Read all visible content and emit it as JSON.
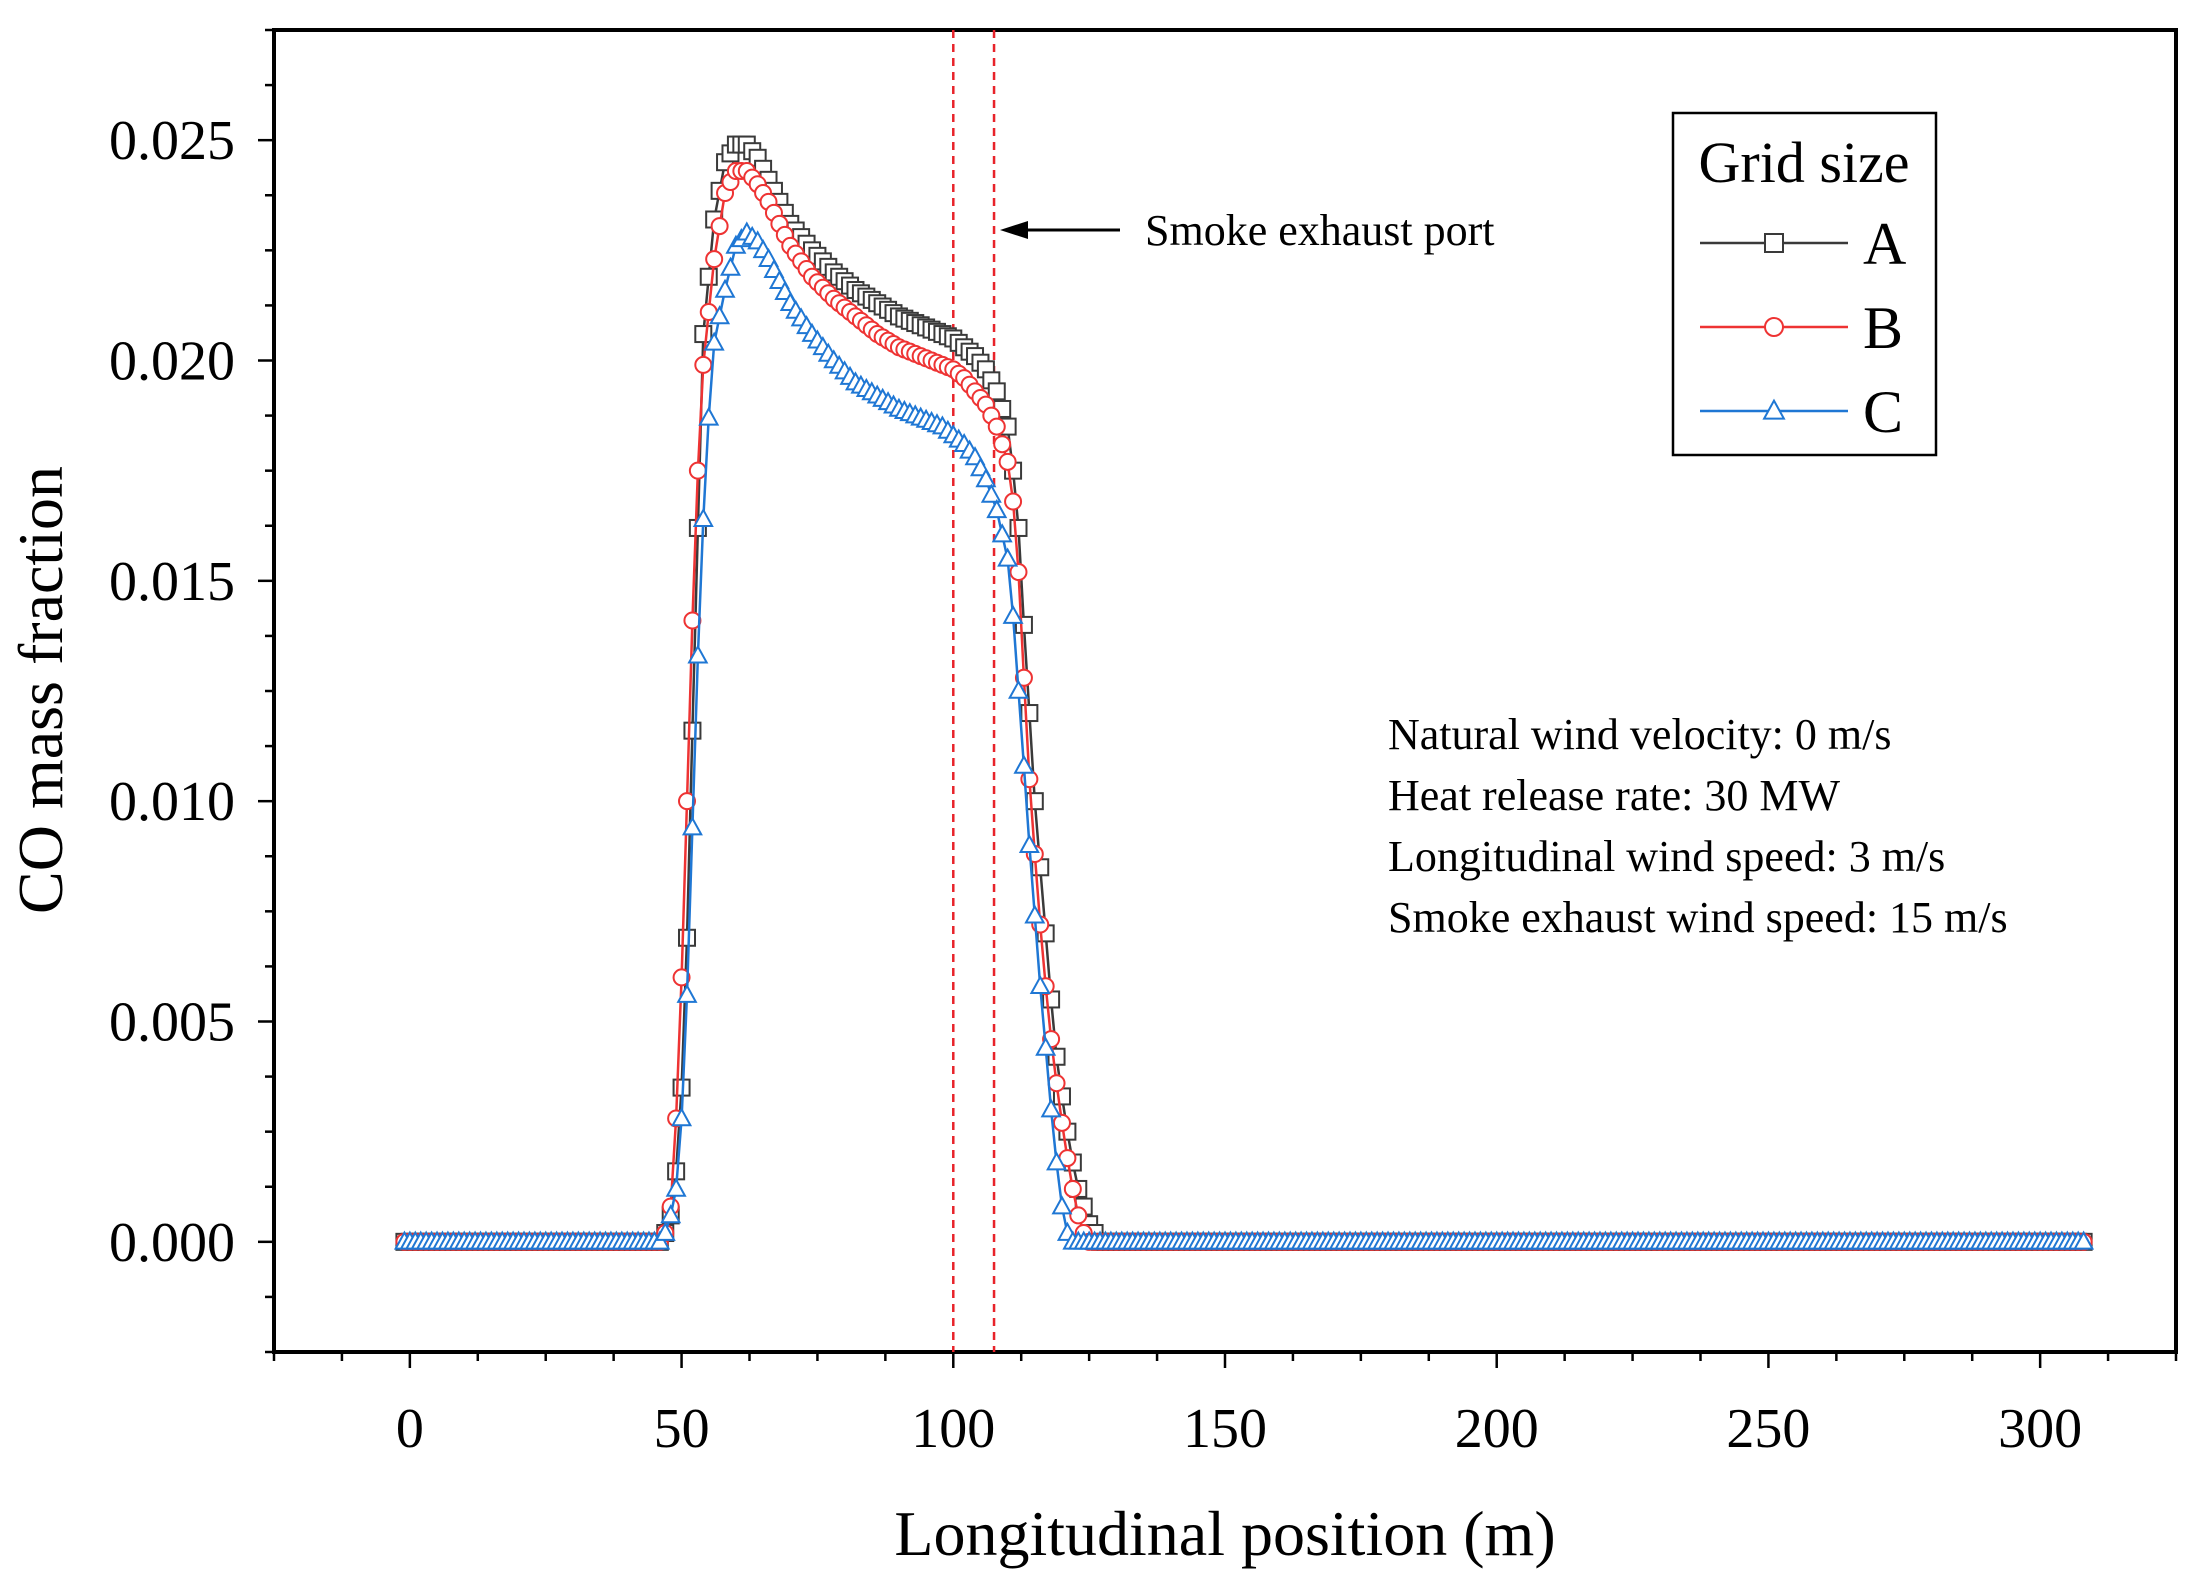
{
  "chart_data": {
    "type": "line",
    "title": "",
    "xlabel": "Longitudinal position (m)",
    "ylabel": "CO mass fraction",
    "xlim": [
      -25,
      325
    ],
    "ylim": [
      -0.0025,
      0.0275
    ],
    "xticks": [
      0,
      50,
      100,
      150,
      200,
      250,
      300
    ],
    "xtick_labels": [
      "0",
      "50",
      "100",
      "150",
      "200",
      "250",
      "300"
    ],
    "yticks": [
      0.0,
      0.005,
      0.01,
      0.015,
      0.02,
      0.025
    ],
    "ytick_labels": [
      "0.000",
      "0.005",
      "0.010",
      "0.015",
      "0.020",
      "0.025"
    ],
    "grid": false,
    "legend": {
      "title": "Grid size",
      "position": "top-right",
      "entries": [
        "A",
        "B",
        "C"
      ]
    },
    "exhaust_port_lines_x": [
      100,
      107.5
    ],
    "exhaust_port_label": "Smoke exhaust port",
    "conditions": [
      "Natural wind velocity: 0 m/s",
      "Heat release rate: 30 MW",
      "Longitudinal wind speed: 3 m/s",
      "Smoke exhaust wind speed: 15 m/s"
    ],
    "series": [
      {
        "name": "A",
        "color": "#3a3a3a",
        "marker": "square",
        "points": [
          [
            -1,
            0.0
          ],
          [
            46,
            0.0
          ],
          [
            47,
            0.0002
          ],
          [
            48,
            0.0006
          ],
          [
            49,
            0.0016
          ],
          [
            50,
            0.0035
          ],
          [
            51,
            0.0069
          ],
          [
            52,
            0.0116
          ],
          [
            53,
            0.0162
          ],
          [
            54,
            0.0206
          ],
          [
            56,
            0.0232
          ],
          [
            58,
            0.0245
          ],
          [
            60,
            0.0249
          ],
          [
            62,
            0.0249
          ],
          [
            64,
            0.0246
          ],
          [
            66,
            0.0241
          ],
          [
            68,
            0.0236
          ],
          [
            70,
            0.0231
          ],
          [
            74,
            0.0225
          ],
          [
            78,
            0.022
          ],
          [
            82,
            0.0216
          ],
          [
            86,
            0.0213
          ],
          [
            90,
            0.021
          ],
          [
            94,
            0.0208
          ],
          [
            98,
            0.0206
          ],
          [
            100,
            0.0205
          ],
          [
            102,
            0.0203
          ],
          [
            104,
            0.0201
          ],
          [
            106,
            0.0198
          ],
          [
            108,
            0.0193
          ],
          [
            110,
            0.0185
          ],
          [
            111,
            0.0175
          ],
          [
            112,
            0.0162
          ],
          [
            113,
            0.014
          ],
          [
            114,
            0.012
          ],
          [
            115,
            0.01
          ],
          [
            116,
            0.0085
          ],
          [
            117,
            0.007
          ],
          [
            118,
            0.0055
          ],
          [
            119,
            0.0042
          ],
          [
            120,
            0.0033
          ],
          [
            121,
            0.0025
          ],
          [
            122,
            0.0018
          ],
          [
            123,
            0.0012
          ],
          [
            124,
            0.0008
          ],
          [
            125,
            0.0004
          ],
          [
            126,
            0.0002
          ],
          [
            127,
            0.0
          ],
          [
            180,
            0.0
          ],
          [
            240,
            0.0
          ],
          [
            308,
            0.0
          ]
        ]
      },
      {
        "name": "B",
        "color": "#ee3333",
        "marker": "circle",
        "points": [
          [
            -1,
            0.0
          ],
          [
            46,
            0.0
          ],
          [
            47,
            0.0002
          ],
          [
            48,
            0.0008
          ],
          [
            49,
            0.0028
          ],
          [
            50,
            0.006
          ],
          [
            51,
            0.01
          ],
          [
            52,
            0.0141
          ],
          [
            53,
            0.0175
          ],
          [
            54,
            0.0199
          ],
          [
            56,
            0.0223
          ],
          [
            58,
            0.0238
          ],
          [
            60,
            0.0243
          ],
          [
            62,
            0.0243
          ],
          [
            64,
            0.024
          ],
          [
            66,
            0.0236
          ],
          [
            68,
            0.0231
          ],
          [
            70,
            0.0226
          ],
          [
            74,
            0.0219
          ],
          [
            78,
            0.0214
          ],
          [
            82,
            0.021
          ],
          [
            86,
            0.0206
          ],
          [
            90,
            0.0203
          ],
          [
            94,
            0.0201
          ],
          [
            98,
            0.0199
          ],
          [
            100,
            0.0198
          ],
          [
            102,
            0.0196
          ],
          [
            104,
            0.0193
          ],
          [
            106,
            0.019
          ],
          [
            108,
            0.0185
          ],
          [
            110,
            0.0177
          ],
          [
            111,
            0.0168
          ],
          [
            112,
            0.0152
          ],
          [
            113,
            0.0128
          ],
          [
            114,
            0.0105
          ],
          [
            115,
            0.0088
          ],
          [
            116,
            0.0072
          ],
          [
            117,
            0.0058
          ],
          [
            118,
            0.0046
          ],
          [
            119,
            0.0036
          ],
          [
            120,
            0.0027
          ],
          [
            121,
            0.0019
          ],
          [
            122,
            0.0012
          ],
          [
            123,
            0.0006
          ],
          [
            124,
            0.0002
          ],
          [
            125,
            0.0
          ],
          [
            180,
            0.0
          ],
          [
            240,
            0.0
          ],
          [
            308,
            0.0
          ]
        ]
      },
      {
        "name": "C",
        "color": "#1f77d4",
        "marker": "triangle",
        "points": [
          [
            -1,
            0.0
          ],
          [
            46,
            0.0
          ],
          [
            47,
            0.0002
          ],
          [
            48,
            0.0006
          ],
          [
            49,
            0.0012
          ],
          [
            50,
            0.0028
          ],
          [
            51,
            0.0056
          ],
          [
            52,
            0.0094
          ],
          [
            53,
            0.0133
          ],
          [
            54,
            0.0164
          ],
          [
            55,
            0.0187
          ],
          [
            56,
            0.0204
          ],
          [
            58,
            0.0216
          ],
          [
            60,
            0.0226
          ],
          [
            62,
            0.0229
          ],
          [
            64,
            0.0227
          ],
          [
            66,
            0.0223
          ],
          [
            68,
            0.0218
          ],
          [
            70,
            0.0213
          ],
          [
            74,
            0.0206
          ],
          [
            78,
            0.02
          ],
          [
            82,
            0.0195
          ],
          [
            86,
            0.0192
          ],
          [
            90,
            0.0189
          ],
          [
            94,
            0.0187
          ],
          [
            98,
            0.0185
          ],
          [
            100,
            0.0183
          ],
          [
            102,
            0.0181
          ],
          [
            104,
            0.0178
          ],
          [
            106,
            0.0173
          ],
          [
            108,
            0.0166
          ],
          [
            110,
            0.0155
          ],
          [
            111,
            0.0142
          ],
          [
            112,
            0.0125
          ],
          [
            113,
            0.0108
          ],
          [
            114,
            0.009
          ],
          [
            115,
            0.0074
          ],
          [
            116,
            0.0058
          ],
          [
            117,
            0.0044
          ],
          [
            118,
            0.003
          ],
          [
            119,
            0.0018
          ],
          [
            120,
            0.0008
          ],
          [
            121,
            0.0002
          ],
          [
            122,
            0.0
          ],
          [
            180,
            0.0
          ],
          [
            240,
            0.0
          ],
          [
            308,
            0.0
          ]
        ]
      }
    ]
  }
}
